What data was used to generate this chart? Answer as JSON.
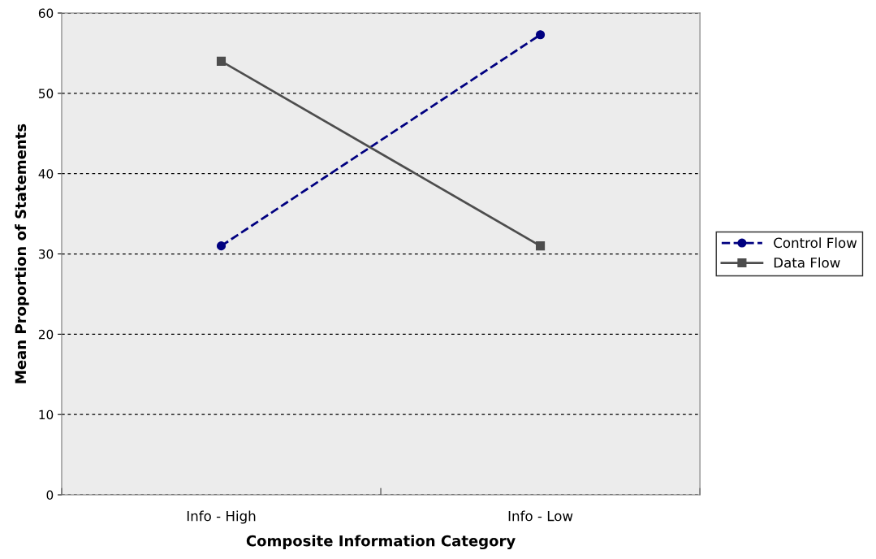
{
  "chart_data": {
    "type": "line",
    "xlabel": "Composite Information Category",
    "ylabel": "Mean Proportion of Statements",
    "categories": [
      "Info - High",
      "Info - Low"
    ],
    "series": [
      {
        "name": "Control Flow",
        "color": "#000080",
        "values": [
          31,
          57.3
        ],
        "marker": "circle",
        "line_style": "dashed"
      },
      {
        "name": "Data Flow",
        "color": "#4d4d4d",
        "values": [
          54,
          31
        ],
        "marker": "square",
        "line_style": "solid"
      }
    ],
    "ylim": [
      0,
      60
    ],
    "yticks": [
      0,
      10,
      20,
      30,
      40,
      50,
      60
    ],
    "grid": "y",
    "legend": "right"
  }
}
